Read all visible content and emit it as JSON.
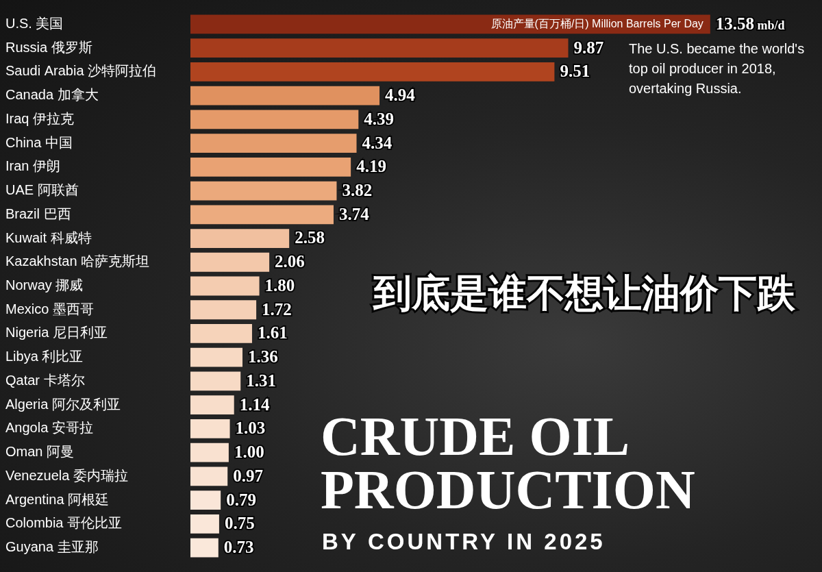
{
  "chart_data": {
    "type": "bar",
    "orientation": "horizontal",
    "title": "CRUDE OIL PRODUCTION",
    "subtitle": "BY COUNTRY IN 2025",
    "headline": "到底是谁不想让油价下跌",
    "annotation": "The U.S. became the world's top oil producer in 2018, overtaking Russia.",
    "unit_label": "原油产量(百万桶/日) Million Barrels Per Day",
    "categories": [
      "U.S. 美国",
      "Russia 俄罗斯",
      "Saudi Arabia 沙特阿拉伯",
      "Canada 加拿大",
      "Iraq 伊拉克",
      "China 中国",
      "Iran 伊朗",
      "UAE 阿联酋",
      "Brazil 巴西",
      "Kuwait 科威特",
      "Kazakhstan 哈萨克斯坦",
      "Norway 挪威",
      "Mexico 墨西哥",
      "Nigeria 尼日利亚",
      "Libya 利比亚",
      "Qatar 卡塔尔",
      "Algeria 阿尔及利亚",
      "Angola 安哥拉",
      "Oman 阿曼",
      "Venezuela 委内瑞拉",
      "Argentina 阿根廷",
      "Colombia 哥伦比亚",
      "Guyana 圭亚那"
    ],
    "values": [
      13.58,
      9.87,
      9.51,
      4.94,
      4.39,
      4.34,
      4.19,
      3.82,
      3.74,
      2.58,
      2.06,
      1.8,
      1.72,
      1.61,
      1.36,
      1.31,
      1.14,
      1.03,
      1.0,
      0.97,
      0.79,
      0.75,
      0.73
    ],
    "value_labels": [
      "13.58 mb/d",
      "9.87",
      "9.51",
      "4.94",
      "4.39",
      "4.34",
      "4.19",
      "3.82",
      "3.74",
      "2.58",
      "2.06",
      "1.80",
      "1.72",
      "1.61",
      "1.36",
      "1.31",
      "1.14",
      "1.03",
      "1.00",
      "0.97",
      "0.79",
      "0.75",
      "0.73"
    ],
    "colors": [
      "#8a2a14",
      "#a63c1c",
      "#b0441f",
      "#e0915f",
      "#e59a69",
      "#e69d6d",
      "#e9a273",
      "#eba97c",
      "#ecab7f",
      "#f1c09f",
      "#f3c8aa",
      "#f4ccb0",
      "#f5d0b6",
      "#f6d3ba",
      "#f7d9c3",
      "#f7dac5",
      "#f8ddca",
      "#f9e0ce",
      "#f9e1d0",
      "#f9e2d2",
      "#fae6d8",
      "#fae7d9",
      "#fae8da"
    ],
    "xlim": [
      0,
      16.5
    ],
    "grid": false,
    "data_labels": true,
    "tick_labels": "y"
  }
}
